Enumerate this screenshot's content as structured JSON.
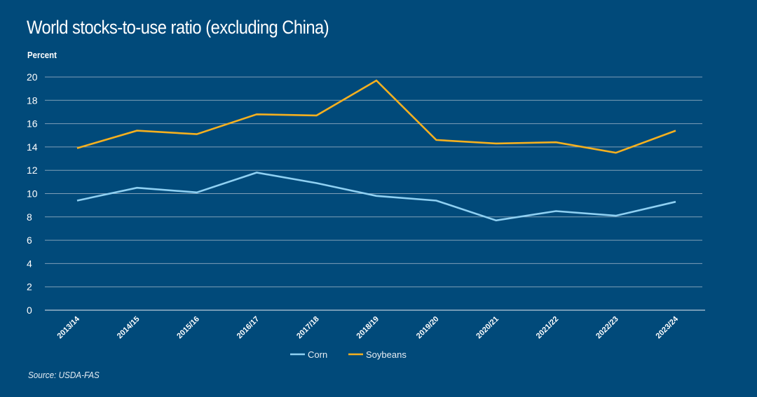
{
  "title": "World stocks-to-use ratio (excluding China)",
  "source": "Source: USDA-FAS",
  "colors": {
    "background": "#014a7a",
    "grid": "#7f9fb8",
    "corn": "#8fd0f2",
    "soybeans": "#f5b01f"
  },
  "chart_data": {
    "type": "line",
    "title": "World stocks-to-use ratio (excluding China)",
    "xlabel": "",
    "ylabel": "Percent",
    "ylim": [
      0,
      20
    ],
    "yticks": [
      0,
      2,
      4,
      6,
      8,
      10,
      12,
      14,
      16,
      18,
      20
    ],
    "grid": true,
    "legend_position": "bottom-center",
    "categories": [
      "2013/14",
      "2014/15",
      "2015/16",
      "2016/17",
      "2017/18",
      "2018/19",
      "2019/20",
      "2020/21",
      "2021/22",
      "2022/23",
      "2023/24"
    ],
    "series": [
      {
        "name": "Corn",
        "color": "#8fd0f2",
        "values": [
          9.4,
          10.5,
          10.1,
          11.8,
          10.9,
          9.8,
          9.4,
          7.7,
          8.5,
          8.1,
          9.3
        ]
      },
      {
        "name": "Soybeans",
        "color": "#f5b01f",
        "values": [
          13.9,
          15.4,
          15.1,
          16.8,
          16.7,
          19.7,
          14.6,
          14.3,
          14.4,
          13.5,
          15.4
        ]
      }
    ],
    "source": "Source: USDA-FAS"
  }
}
